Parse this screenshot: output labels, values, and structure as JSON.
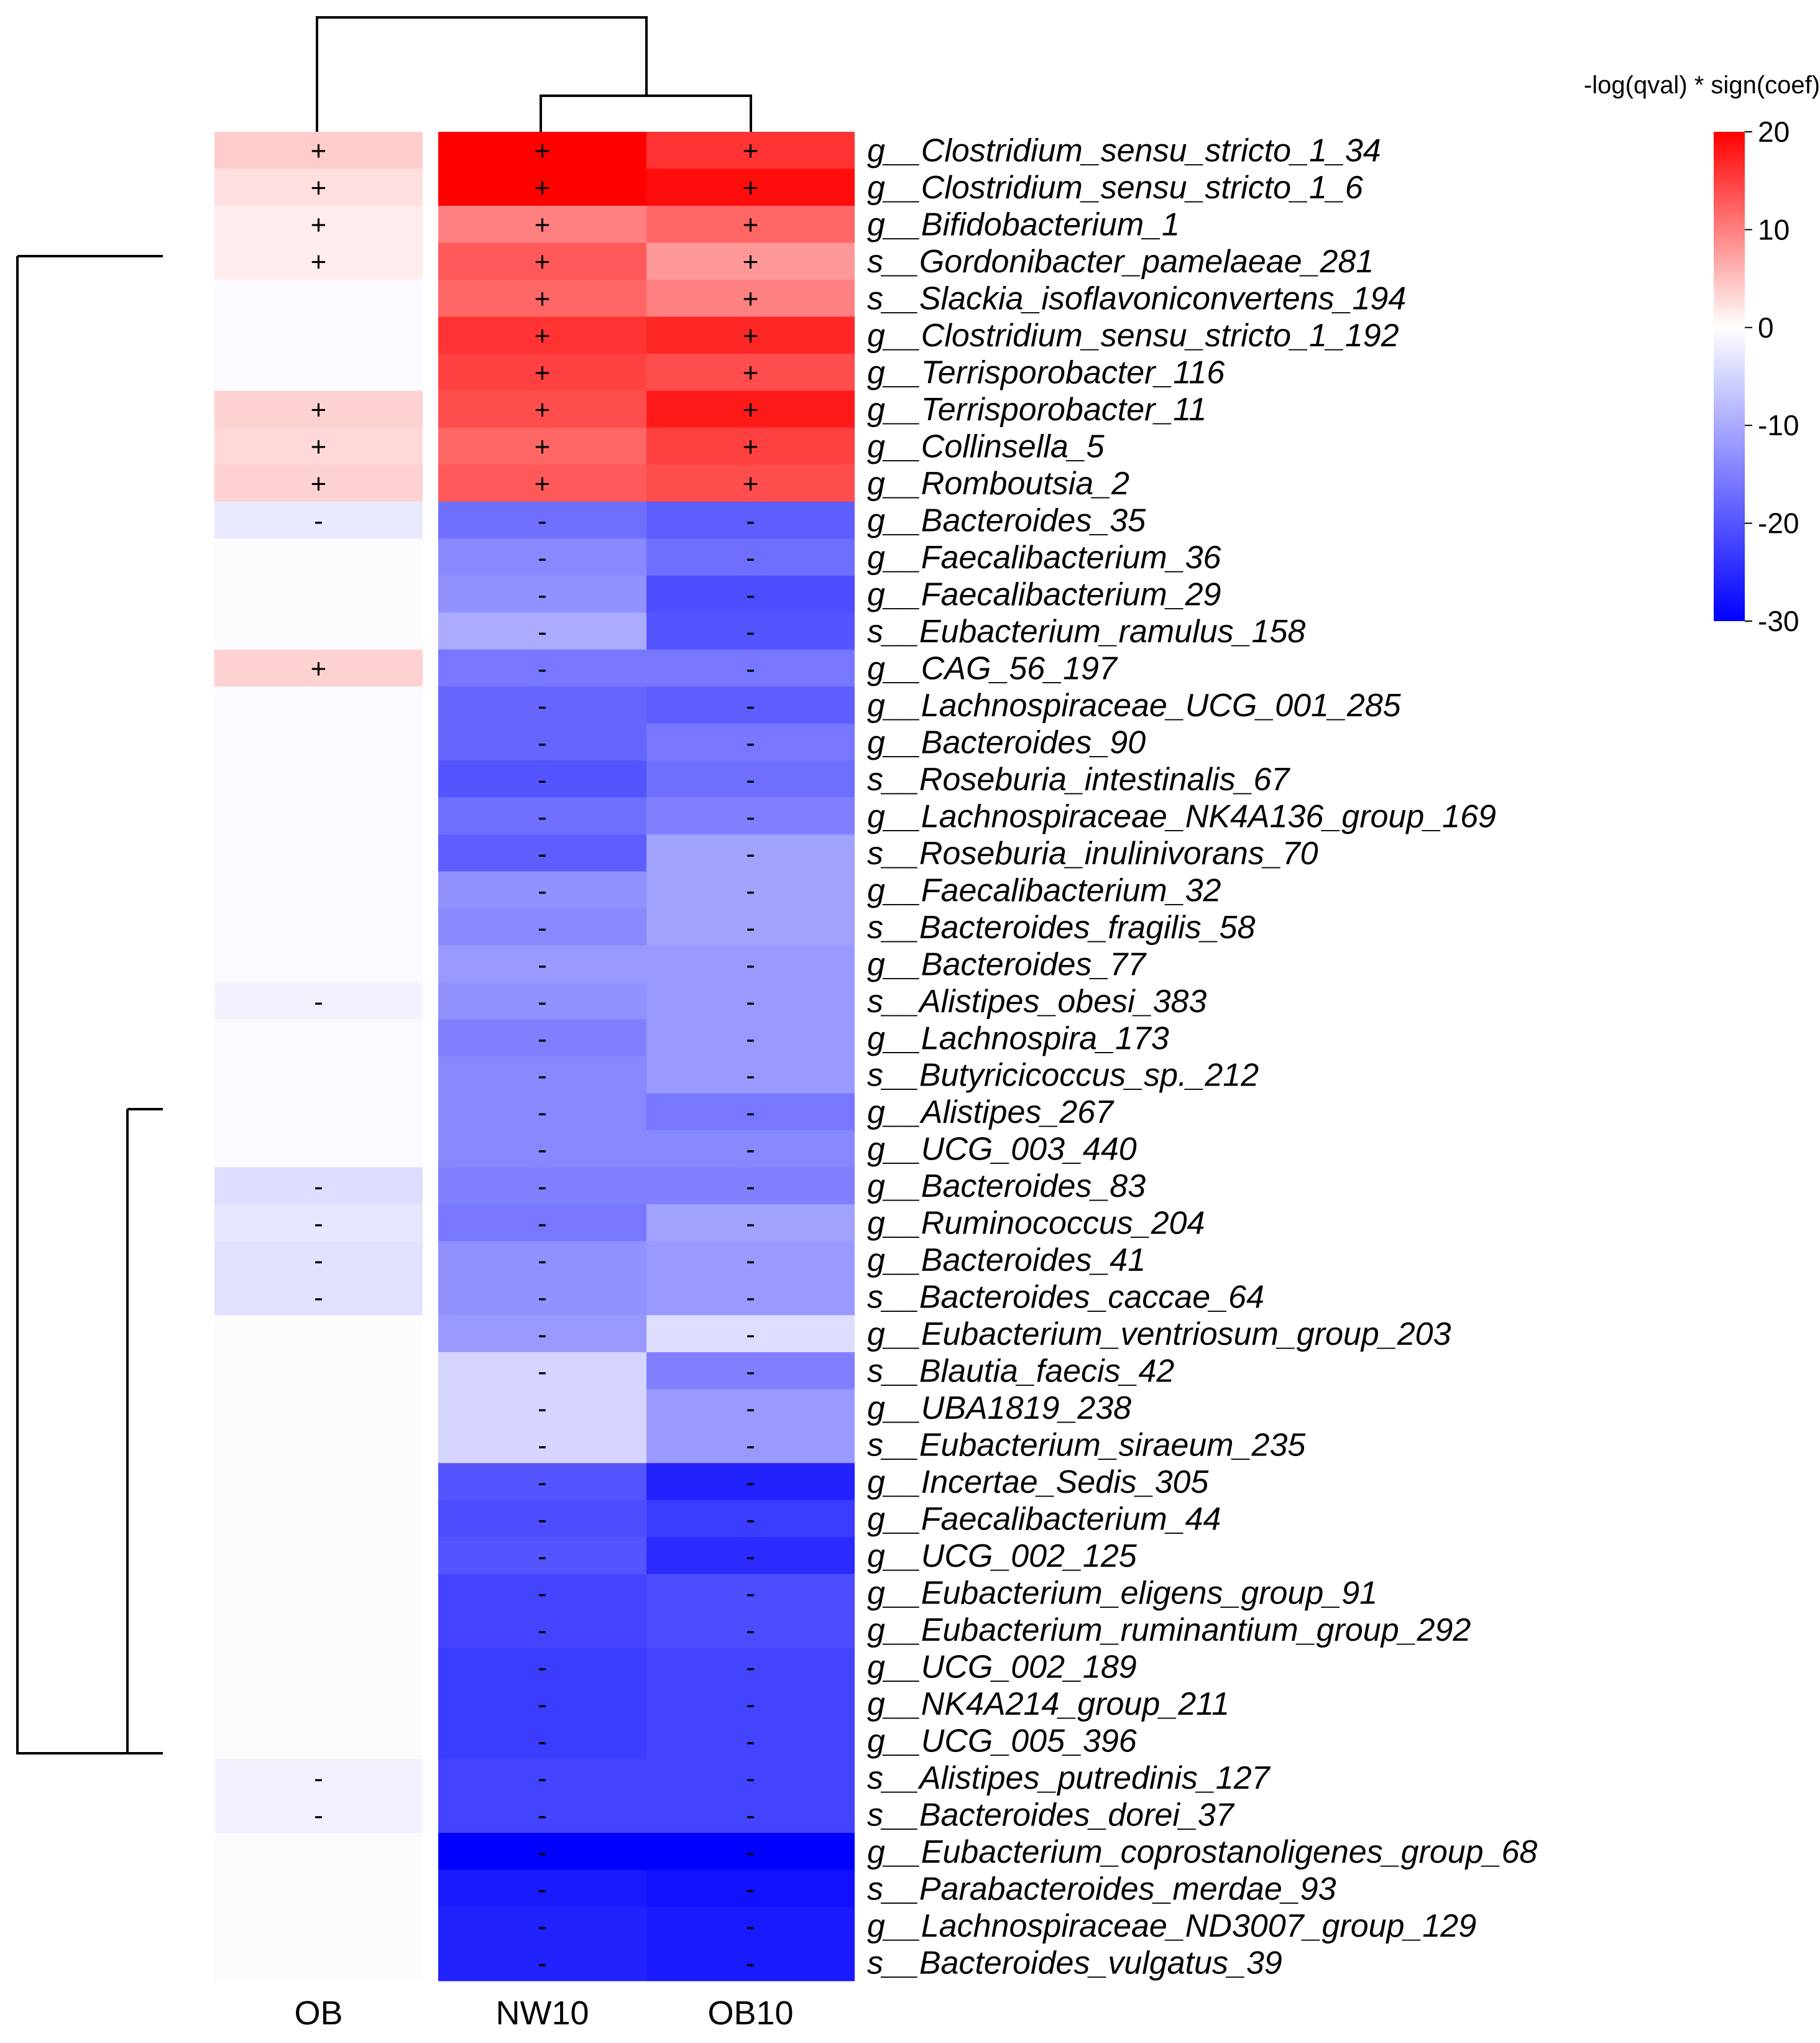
{
  "chart_data": {
    "type": "heatmap",
    "title": "",
    "legend": {
      "title": "-log(qval) * sign(coef)",
      "ticks": [
        20,
        10,
        0,
        -10,
        -20,
        -30
      ],
      "range": [
        -30,
        20
      ],
      "colors": {
        "low": "#0000ff",
        "mid": "#ffffff",
        "high": "#ff0000"
      }
    },
    "columns": [
      "OB",
      "NW10",
      "OB10"
    ],
    "rows": [
      {
        "label": "g__Clostridium_sensu_stricto_1_34",
        "values": [
          4,
          20,
          16
        ],
        "signs": [
          "+",
          "+",
          "+"
        ]
      },
      {
        "label": "g__Clostridium_sensu_stricto_1_6",
        "values": [
          2.5,
          20,
          19
        ],
        "signs": [
          "+",
          "+",
          "+"
        ]
      },
      {
        "label": "g__Bifidobacterium_1",
        "values": [
          1.5,
          10,
          12
        ],
        "signs": [
          "+",
          "+",
          "+"
        ]
      },
      {
        "label": "s__Gordonibacter_pamelaeae_281",
        "values": [
          1.5,
          13,
          8
        ],
        "signs": [
          "+",
          "+",
          "+"
        ]
      },
      {
        "label": "s__Slackia_isoflavoniconvertens_194",
        "values": [
          -0.5,
          12,
          10
        ],
        "signs": [
          "",
          "+",
          "+"
        ]
      },
      {
        "label": "g__Clostridium_sensu_stricto_1_192",
        "values": [
          -0.5,
          16,
          17
        ],
        "signs": [
          "",
          "+",
          "+"
        ]
      },
      {
        "label": "g__Terrisporobacter_116",
        "values": [
          -0.5,
          15,
          14
        ],
        "signs": [
          "",
          "+",
          "+"
        ]
      },
      {
        "label": "g__Terrisporobacter_11",
        "values": [
          3.5,
          14,
          18
        ],
        "signs": [
          "+",
          "+",
          "+"
        ]
      },
      {
        "label": "g__Collinsella_5",
        "values": [
          3,
          12,
          15
        ],
        "signs": [
          "+",
          "+",
          "+"
        ]
      },
      {
        "label": "g__Romboutsia_2",
        "values": [
          3.5,
          13,
          14
        ],
        "signs": [
          "+",
          "+",
          "+"
        ]
      },
      {
        "label": "g__Bacteroides_35",
        "values": [
          -2.5,
          -17,
          -19
        ],
        "signs": [
          "-",
          "-",
          "-"
        ]
      },
      {
        "label": "g__Faecalibacterium_36",
        "values": [
          -0.3,
          -14,
          -17
        ],
        "signs": [
          "",
          "-",
          "-"
        ]
      },
      {
        "label": "g__Faecalibacterium_29",
        "values": [
          -0.3,
          -13,
          -21
        ],
        "signs": [
          "",
          "-",
          "-"
        ]
      },
      {
        "label": "s__Eubacterium_ramulus_158",
        "values": [
          -0.3,
          -10,
          -20
        ],
        "signs": [
          "",
          "-",
          "-"
        ]
      },
      {
        "label": "g__CAG_56_197",
        "values": [
          3.5,
          -16,
          -16
        ],
        "signs": [
          "+",
          "-",
          "-"
        ]
      },
      {
        "label": "g__Lachnospiraceae_UCG_001_285",
        "values": [
          -0.5,
          -18,
          -19
        ],
        "signs": [
          "",
          "-",
          "-"
        ]
      },
      {
        "label": "g__Bacteroides_90",
        "values": [
          -0.5,
          -18,
          -16
        ],
        "signs": [
          "",
          "-",
          "-"
        ]
      },
      {
        "label": "s__Roseburia_intestinalis_67",
        "values": [
          -0.5,
          -20,
          -17
        ],
        "signs": [
          "",
          "-",
          "-"
        ]
      },
      {
        "label": "g__Lachnospiraceae_NK4A136_group_169",
        "values": [
          -0.5,
          -17,
          -15
        ],
        "signs": [
          "",
          "-",
          "-"
        ]
      },
      {
        "label": "s__Roseburia_inulinivorans_70",
        "values": [
          -0.5,
          -19,
          -11
        ],
        "signs": [
          "",
          "-",
          "-"
        ]
      },
      {
        "label": "g__Faecalibacterium_32",
        "values": [
          -0.5,
          -13,
          -11
        ],
        "signs": [
          "",
          "-",
          "-"
        ]
      },
      {
        "label": "s__Bacteroides_fragilis_58",
        "values": [
          -0.5,
          -14,
          -11
        ],
        "signs": [
          "",
          "-",
          "-"
        ]
      },
      {
        "label": "g__Bacteroides_77",
        "values": [
          -0.5,
          -12,
          -12
        ],
        "signs": [
          "",
          "-",
          "-"
        ]
      },
      {
        "label": "s__Alistipes_obesi_383",
        "values": [
          -1.5,
          -13,
          -12
        ],
        "signs": [
          "-",
          "-",
          "-"
        ]
      },
      {
        "label": "g__Lachnospira_173",
        "values": [
          -0.5,
          -15,
          -12
        ],
        "signs": [
          "",
          "-",
          "-"
        ]
      },
      {
        "label": "s__Butyricicoccus_sp._212",
        "values": [
          -0.5,
          -14,
          -12
        ],
        "signs": [
          "",
          "-",
          "-"
        ]
      },
      {
        "label": "g__Alistipes_267",
        "values": [
          -0.5,
          -14,
          -16
        ],
        "signs": [
          "",
          "-",
          "-"
        ]
      },
      {
        "label": "g__UCG_003_440",
        "values": [
          -0.5,
          -14,
          -14
        ],
        "signs": [
          "",
          "-",
          "-"
        ]
      },
      {
        "label": "g__Bacteroides_83",
        "values": [
          -4,
          -15,
          -15
        ],
        "signs": [
          "-",
          "-",
          "-"
        ]
      },
      {
        "label": "g__Ruminococcus_204",
        "values": [
          -3,
          -16,
          -11
        ],
        "signs": [
          "-",
          "-",
          "-"
        ]
      },
      {
        "label": "g__Bacteroides_41",
        "values": [
          -3.5,
          -13,
          -12
        ],
        "signs": [
          "-",
          "-",
          "-"
        ]
      },
      {
        "label": "s__Bacteroides_caccae_64",
        "values": [
          -3.5,
          -13,
          -12
        ],
        "signs": [
          "-",
          "-",
          "-"
        ]
      },
      {
        "label": "g__Eubacterium_ventriosum_group_203",
        "values": [
          -0.3,
          -12,
          -4
        ],
        "signs": [
          "",
          "-",
          "-"
        ]
      },
      {
        "label": "s__Blautia_faecis_42",
        "values": [
          -0.3,
          -5,
          -15
        ],
        "signs": [
          "",
          "-",
          "-"
        ]
      },
      {
        "label": "g__UBA1819_238",
        "values": [
          -0.3,
          -5,
          -12
        ],
        "signs": [
          "",
          "-",
          "-"
        ]
      },
      {
        "label": "s__Eubacterium_siraeum_235",
        "values": [
          -0.3,
          -5,
          -12
        ],
        "signs": [
          "",
          "-",
          "-"
        ]
      },
      {
        "label": "g__Incertae_Sedis_305",
        "values": [
          -0.3,
          -20,
          -26
        ],
        "signs": [
          "",
          "-",
          "-"
        ]
      },
      {
        "label": "g__Faecalibacterium_44",
        "values": [
          -0.3,
          -21,
          -23
        ],
        "signs": [
          "",
          "-",
          "-"
        ]
      },
      {
        "label": "g__UCG_002_125",
        "values": [
          -0.3,
          -20,
          -25
        ],
        "signs": [
          "",
          "-",
          "-"
        ]
      },
      {
        "label": "g__Eubacterium_eligens_group_91",
        "values": [
          -0.3,
          -22,
          -21
        ],
        "signs": [
          "",
          "-",
          "-"
        ]
      },
      {
        "label": "g__Eubacterium_ruminantium_group_292",
        "values": [
          -0.3,
          -22,
          -21
        ],
        "signs": [
          "",
          "-",
          "-"
        ]
      },
      {
        "label": "g__UCG_002_189",
        "values": [
          -0.3,
          -23,
          -22
        ],
        "signs": [
          "",
          "-",
          "-"
        ]
      },
      {
        "label": "g__NK4A214_group_211",
        "values": [
          -0.3,
          -23,
          -22
        ],
        "signs": [
          "",
          "-",
          "-"
        ]
      },
      {
        "label": "g__UCG_005_396",
        "values": [
          -0.3,
          -23,
          -22
        ],
        "signs": [
          "",
          "-",
          "-"
        ]
      },
      {
        "label": "s__Alistipes_putredinis_127",
        "values": [
          -1.5,
          -22,
          -22
        ],
        "signs": [
          "-",
          "-",
          "-"
        ]
      },
      {
        "label": "s__Bacteroides_dorei_37",
        "values": [
          -1.5,
          -22,
          -22
        ],
        "signs": [
          "-",
          "-",
          "-"
        ]
      },
      {
        "label": "g__Eubacterium_coprostanoligenes_group_68",
        "values": [
          -0.3,
          -30,
          -30
        ],
        "signs": [
          "",
          "-",
          "-"
        ]
      },
      {
        "label": "s__Parabacteroides_merdae_93",
        "values": [
          -0.3,
          -27,
          -28
        ],
        "signs": [
          "",
          "-",
          "-"
        ]
      },
      {
        "label": "g__Lachnospiraceae_ND3007_group_129",
        "values": [
          -0.3,
          -26,
          -27
        ],
        "signs": [
          "",
          "-",
          "-"
        ]
      },
      {
        "label": "s__Bacteroides_vulgatus_39",
        "values": [
          -0.3,
          -26,
          -27
        ],
        "signs": [
          "",
          "-",
          "-"
        ]
      }
    ]
  }
}
